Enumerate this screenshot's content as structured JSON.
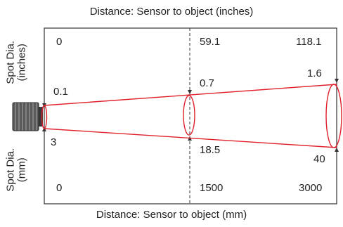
{
  "top_axis_title": "Distance: Sensor to object (inches)",
  "bottom_axis_title": "Distance: Sensor to object (mm)",
  "left_top_label": {
    "line1": "Spot Dia.",
    "line2": "(inches)"
  },
  "left_bottom_label": {
    "line1": "Spot Dia.",
    "line2": "(mm)"
  },
  "distances_inches": [
    "0",
    "59.1",
    "118.1"
  ],
  "spot_inches": [
    "0.1",
    "0.7",
    "1.6"
  ],
  "spot_mm": [
    "3",
    "18.5",
    "40"
  ],
  "distances_mm": [
    "0",
    "1500",
    "3000"
  ],
  "colors": {
    "beam": "#e0212b",
    "frame": "#333333",
    "sensor": "#555555"
  },
  "icons": {
    "sensor": "sensor-icon"
  }
}
